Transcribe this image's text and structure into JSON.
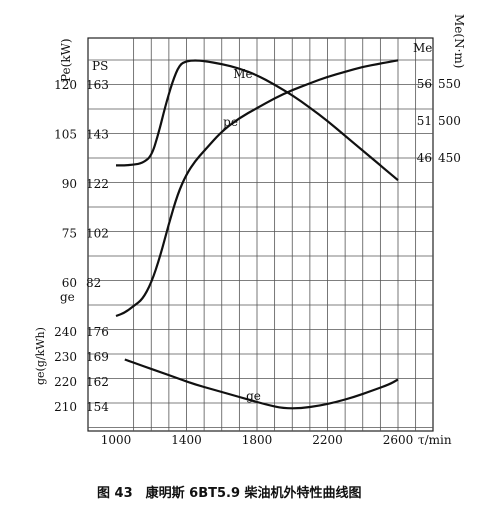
{
  "caption": "图 43　康明斯 6BT5.9 柴油机外特性曲线图",
  "chart_data": {
    "type": "line",
    "x": {
      "label": "τ/min",
      "range": [
        900,
        2800
      ],
      "ticks": [
        1000,
        1400,
        1800,
        2200,
        2600
      ],
      "tick_labels": [
        "1000",
        "1400",
        "1800",
        "2200",
        "2600"
      ]
    },
    "left_axis_labels": {
      "power_label": "Pe(kW)",
      "ps_label": "PS",
      "ge_label": "ge",
      "ge_axis_label": "ge(g/kWh)",
      "power_kw_ticks": [
        "120",
        "105",
        "90",
        "75",
        "60"
      ],
      "power_ps_ticks": [
        "163",
        "143",
        "122",
        "102",
        "82"
      ],
      "ge_ticks": [
        "240",
        "230",
        "220",
        "210"
      ],
      "ge_ps_ticks": [
        "176",
        "169",
        "162",
        "154"
      ]
    },
    "right_axis_labels": {
      "torque_label": "Me(N·m)",
      "me_header": "Me",
      "me_ticks": [
        "56",
        "51",
        "46"
      ],
      "torque_ticks": [
        "550",
        "500",
        "450"
      ]
    },
    "series": [
      {
        "name": "Me",
        "values_unit": "N·m",
        "x": [
          1000,
          1050,
          1100,
          1150,
          1200,
          1240,
          1280,
          1320,
          1360,
          1400,
          1450,
          1500,
          1600,
          1700,
          1800,
          1900,
          2000,
          2100,
          2200,
          2300,
          2400,
          2500,
          2600
        ],
        "y": [
          440,
          440,
          441,
          443,
          452,
          482,
          520,
          553,
          576,
          581,
          582,
          581,
          577,
          571,
          562,
          549,
          535,
          518,
          500,
          480,
          460,
          440,
          420
        ]
      },
      {
        "name": "pe",
        "values_unit": "kW",
        "x": [
          1000,
          1050,
          1100,
          1150,
          1200,
          1250,
          1300,
          1350,
          1400,
          1450,
          1500,
          1600,
          1700,
          1800,
          1900,
          2000,
          2100,
          2200,
          2300,
          2400,
          2500,
          2600
        ],
        "y": [
          50,
          51,
          53,
          55,
          60,
          68,
          78,
          87,
          93,
          97,
          100,
          106,
          110,
          113,
          116,
          118.5,
          120.5,
          122.5,
          124,
          125.5,
          126.5,
          127.5
        ]
      },
      {
        "name": "ge",
        "values_unit": "g/kWh",
        "x": [
          1050,
          1150,
          1250,
          1350,
          1450,
          1550,
          1650,
          1750,
          1850,
          1950,
          2050,
          2150,
          2250,
          2350,
          2450,
          2550,
          2600
        ],
        "y": [
          229,
          226.5,
          224,
          221.5,
          219,
          217,
          215,
          213,
          211,
          209.5,
          209.5,
          210.5,
          212,
          214,
          216.5,
          219,
          221
        ]
      }
    ]
  }
}
